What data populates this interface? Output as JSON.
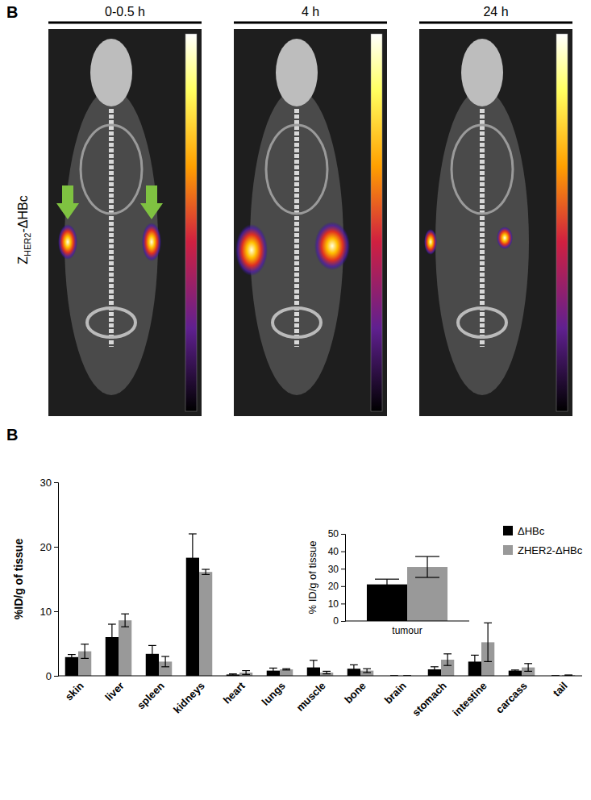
{
  "figure": {
    "title": "B",
    "time_points": [
      "0-0.5 h",
      "4 h",
      "24 h"
    ],
    "row_label": {
      "main": "Z",
      "sub": "HER2",
      "rest": "-ΔHBc"
    }
  },
  "chart_data": [
    {
      "type": "bar",
      "title": "B",
      "y_label": "%ID/g of tissue",
      "categories": [
        "skin",
        "liver",
        "spleen",
        "kidneys",
        "heart",
        "lungs",
        "muscle",
        "bone",
        "brain",
        "stomach",
        "intestine",
        "carcass",
        "tail"
      ],
      "series": [
        {
          "name": "ΔHBc",
          "color": "#000000",
          "values": [
            2.9,
            6.0,
            3.4,
            18.3,
            0.2,
            0.8,
            1.3,
            1.1,
            0,
            1.0,
            2.2,
            0.8,
            0
          ],
          "errors": [
            0.4,
            2.0,
            1.3,
            3.7,
            0.1,
            0.4,
            1.1,
            0.6,
            0,
            0.4,
            1.0,
            0.1,
            0
          ]
        },
        {
          "name": "ZHER2-ΔHBc",
          "color": "#999999",
          "values": [
            3.8,
            8.6,
            2.2,
            16.1,
            0.5,
            1.0,
            0.5,
            0.8,
            0,
            2.5,
            5.2,
            1.3,
            0.1
          ],
          "errors": [
            1.1,
            1.0,
            0.8,
            0.4,
            0.3,
            0.1,
            0.2,
            0.3,
            0,
            0.9,
            3.0,
            0.6,
            0
          ]
        }
      ],
      "ylim": [
        0,
        30
      ],
      "yticks": [
        0,
        10,
        20,
        30
      ],
      "legend": "upper right"
    },
    {
      "type": "bar",
      "y_label": "% ID/g of tissue",
      "categories": [
        "tumour"
      ],
      "series": [
        {
          "color": "#000000",
          "values": [
            21
          ],
          "errors": [
            3
          ]
        },
        {
          "color": "#999999",
          "values": [
            31
          ],
          "errors": [
            6
          ]
        }
      ],
      "ylim": [
        0,
        50
      ],
      "yticks": [
        0,
        10,
        20,
        30,
        40,
        50
      ]
    }
  ]
}
